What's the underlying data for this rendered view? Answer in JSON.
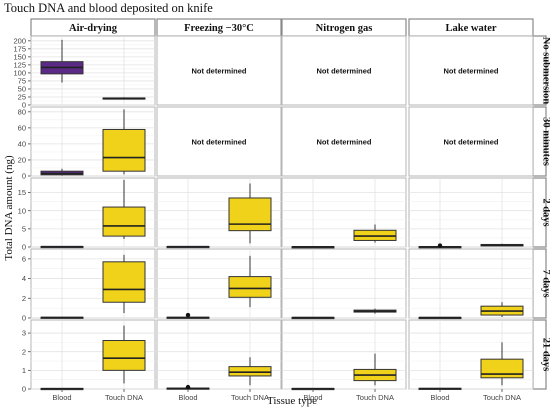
{
  "chart_data": {
    "type": "boxplot",
    "title": "Touch DNA and blood deposited on knife",
    "xlabel": "Tissue type",
    "ylabel": "Total DNA amount (ng)",
    "columns": [
      "Air-drying",
      "Freezing −30°C",
      "Nitrogen gas",
      "Lake water"
    ],
    "rows": [
      "No submersion",
      "30 minutes",
      "2 days",
      "7 days",
      "21 days"
    ],
    "categories": [
      "Blood",
      "Touch DNA"
    ],
    "colors": {
      "Blood": "#5b2a86",
      "Touch DNA": "#f0d21a"
    },
    "not_determined_label": "Not determined",
    "y_axes": [
      {
        "row": "No submersion",
        "ylim": [
          0,
          215
        ],
        "ticks": [
          0,
          25,
          50,
          75,
          100,
          125,
          150,
          175,
          200
        ]
      },
      {
        "row": "30 minutes",
        "ylim": [
          0,
          86
        ],
        "ticks": [
          0,
          20,
          40,
          60,
          80
        ]
      },
      {
        "row": "2 days",
        "ylim": [
          0,
          19
        ],
        "ticks": [
          0,
          5,
          10,
          15
        ]
      },
      {
        "row": "7 days",
        "ylim": [
          0,
          7
        ],
        "ticks": [
          0,
          2,
          4,
          6
        ]
      },
      {
        "row": "21 days",
        "ylim": [
          0,
          3.7
        ],
        "ticks": [
          0,
          1,
          2,
          3
        ]
      }
    ],
    "panels": [
      {
        "row": "No submersion",
        "column": "Air-drying",
        "boxes": [
          {
            "category": "Blood",
            "min": 70,
            "q1": 97,
            "median": 117,
            "q3": 135,
            "max": 203,
            "outliers": []
          },
          {
            "category": "Touch DNA",
            "min": 17,
            "q1": 19,
            "median": 20,
            "q3": 22,
            "max": 24,
            "outliers": []
          }
        ]
      },
      {
        "row": "No submersion",
        "column": "Freezing −30°C",
        "not_determined": true
      },
      {
        "row": "No submersion",
        "column": "Nitrogen gas",
        "not_determined": true
      },
      {
        "row": "No submersion",
        "column": "Lake water",
        "not_determined": true
      },
      {
        "row": "30 minutes",
        "column": "Air-drying",
        "boxes": [
          {
            "category": "Blood",
            "min": 0.5,
            "q1": 1.5,
            "median": 3,
            "q3": 6,
            "max": 9,
            "outliers": []
          },
          {
            "category": "Touch DNA",
            "min": 2,
            "q1": 6,
            "median": 23,
            "q3": 58,
            "max": 83,
            "outliers": []
          }
        ]
      },
      {
        "row": "30 minutes",
        "column": "Freezing −30°C",
        "not_determined": true
      },
      {
        "row": "30 minutes",
        "column": "Nitrogen gas",
        "not_determined": true
      },
      {
        "row": "30 minutes",
        "column": "Lake water",
        "not_determined": true
      },
      {
        "row": "2 days",
        "column": "Air-drying",
        "boxes": [
          {
            "category": "Blood",
            "min": 0,
            "q1": 0.05,
            "median": 0.1,
            "q3": 0.15,
            "max": 0.2,
            "outliers": []
          },
          {
            "category": "Touch DNA",
            "min": 2.2,
            "q1": 3,
            "median": 5.8,
            "q3": 11,
            "max": 18.5,
            "outliers": []
          }
        ]
      },
      {
        "row": "2 days",
        "column": "Freezing −30°C",
        "boxes": [
          {
            "category": "Blood",
            "min": 0,
            "q1": 0.05,
            "median": 0.1,
            "q3": 0.15,
            "max": 0.2,
            "outliers": []
          },
          {
            "category": "Touch DNA",
            "min": 1,
            "q1": 4.5,
            "median": 6.3,
            "q3": 13.5,
            "max": 17.5,
            "outliers": []
          }
        ]
      },
      {
        "row": "2 days",
        "column": "Nitrogen gas",
        "boxes": [
          {
            "category": "Blood",
            "min": 0,
            "q1": 0.02,
            "median": 0.05,
            "q3": 0.08,
            "max": 0.1,
            "outliers": []
          },
          {
            "category": "Touch DNA",
            "min": 1.2,
            "q1": 1.8,
            "median": 3,
            "q3": 4.6,
            "max": 6.2,
            "outliers": []
          }
        ]
      },
      {
        "row": "2 days",
        "column": "Lake water",
        "boxes": [
          {
            "category": "Blood",
            "min": 0,
            "q1": 0.02,
            "median": 0.05,
            "q3": 0.1,
            "max": 0.2,
            "outliers": [
              0.4
            ]
          },
          {
            "category": "Touch DNA",
            "min": 0.2,
            "q1": 0.3,
            "median": 0.5,
            "q3": 0.7,
            "max": 0.9,
            "outliers": []
          }
        ]
      },
      {
        "row": "7 days",
        "column": "Air-drying",
        "boxes": [
          {
            "category": "Blood",
            "min": 0,
            "q1": 0.02,
            "median": 0.05,
            "q3": 0.08,
            "max": 0.1,
            "outliers": []
          },
          {
            "category": "Touch DNA",
            "min": 0.5,
            "q1": 1.6,
            "median": 2.9,
            "q3": 5.7,
            "max": 6.4,
            "outliers": []
          }
        ]
      },
      {
        "row": "7 days",
        "column": "Freezing −30°C",
        "boxes": [
          {
            "category": "Blood",
            "min": 0,
            "q1": 0.02,
            "median": 0.05,
            "q3": 0.08,
            "max": 0.1,
            "outliers": [
              0.3
            ]
          },
          {
            "category": "Touch DNA",
            "min": 1.1,
            "q1": 2.1,
            "median": 3,
            "q3": 4.2,
            "max": 6.3,
            "outliers": []
          }
        ]
      },
      {
        "row": "7 days",
        "column": "Nitrogen gas",
        "boxes": [
          {
            "category": "Blood",
            "min": 0,
            "q1": 0.02,
            "median": 0.04,
            "q3": 0.06,
            "max": 0.08,
            "outliers": []
          },
          {
            "category": "Touch DNA",
            "min": 0.45,
            "q1": 0.6,
            "median": 0.68,
            "q3": 0.8,
            "max": 0.95,
            "outliers": []
          }
        ]
      },
      {
        "row": "7 days",
        "column": "Lake water",
        "boxes": [
          {
            "category": "Blood",
            "min": 0,
            "q1": 0.02,
            "median": 0.04,
            "q3": 0.06,
            "max": 0.08,
            "outliers": []
          },
          {
            "category": "Touch DNA",
            "min": 0.1,
            "q1": 0.3,
            "median": 0.7,
            "q3": 1.2,
            "max": 1.6,
            "outliers": []
          }
        ]
      },
      {
        "row": "21 days",
        "column": "Air-drying",
        "boxes": [
          {
            "category": "Blood",
            "min": 0,
            "q1": 0.01,
            "median": 0.02,
            "q3": 0.03,
            "max": 0.04,
            "outliers": []
          },
          {
            "category": "Touch DNA",
            "min": 0.3,
            "q1": 1,
            "median": 1.65,
            "q3": 2.6,
            "max": 3.4,
            "outliers": []
          }
        ]
      },
      {
        "row": "21 days",
        "column": "Freezing −30°C",
        "boxes": [
          {
            "category": "Blood",
            "min": 0,
            "q1": 0.01,
            "median": 0.03,
            "q3": 0.05,
            "max": 0.06,
            "outliers": [
              0.1
            ]
          },
          {
            "category": "Touch DNA",
            "min": 0.2,
            "q1": 0.7,
            "median": 0.9,
            "q3": 1.2,
            "max": 1.7,
            "outliers": []
          }
        ]
      },
      {
        "row": "21 days",
        "column": "Nitrogen gas",
        "boxes": [
          {
            "category": "Blood",
            "min": 0,
            "q1": 0.01,
            "median": 0.02,
            "q3": 0.03,
            "max": 0.04,
            "outliers": []
          },
          {
            "category": "Touch DNA",
            "min": 0.2,
            "q1": 0.45,
            "median": 0.75,
            "q3": 1.05,
            "max": 1.9,
            "outliers": []
          }
        ]
      },
      {
        "row": "21 days",
        "column": "Lake water",
        "boxes": [
          {
            "category": "Blood",
            "min": 0,
            "q1": 0.01,
            "median": 0.02,
            "q3": 0.04,
            "max": 0.06,
            "outliers": []
          },
          {
            "category": "Touch DNA",
            "min": 0.2,
            "q1": 0.6,
            "median": 0.8,
            "q3": 1.6,
            "max": 2.5,
            "outliers": []
          }
        ]
      }
    ]
  }
}
